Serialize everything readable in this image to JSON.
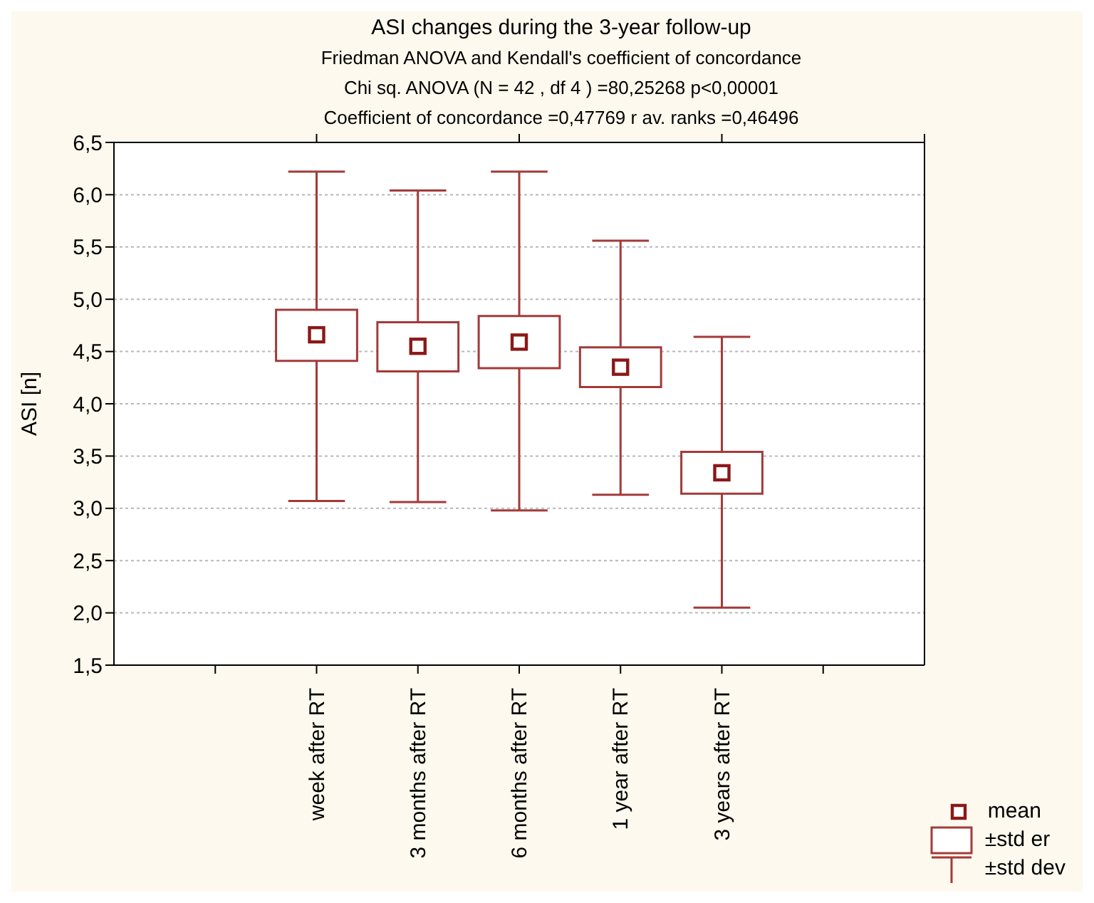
{
  "chart_data": {
    "type": "box",
    "title": "ASI changes during the 3-year follow-up",
    "subtitle": "Friedman ANOVA and Kendall's coefficient of concordance\nChi sq. ANOVA (N = 42 , df 4 ) =80,25268 p<0,00001\nCoefficient of concordance =0,47769 r av. ranks =0,46496",
    "ylabel": "ASI [n]",
    "categories": [
      null,
      "week after RT",
      "3 months after RT",
      "6 months after RT",
      "1 year after RT",
      "3 years after RT",
      null
    ],
    "color": "#a33a3a",
    "boxes": [
      null,
      {
        "low": 3.07,
        "q1": 4.41,
        "q3": 4.9,
        "high": 6.22,
        "mean": 4.66
      },
      {
        "low": 3.06,
        "q1": 4.31,
        "q3": 4.78,
        "high": 6.04,
        "mean": 4.55
      },
      {
        "low": 2.98,
        "q1": 4.34,
        "q3": 4.84,
        "high": 6.22,
        "mean": 4.59
      },
      {
        "low": 3.13,
        "q1": 4.16,
        "q3": 4.54,
        "high": 5.56,
        "mean": 4.35
      },
      {
        "low": 2.05,
        "q1": 3.14,
        "q3": 3.54,
        "high": 4.64,
        "mean": 3.34
      },
      null
    ],
    "ylim": [
      1.5,
      6.5
    ],
    "yticks": [
      {
        "value": 1.5,
        "label": "1,5"
      },
      {
        "value": 2,
        "label": "2,0"
      },
      {
        "value": 2.5,
        "label": "2,5"
      },
      {
        "value": 3,
        "label": "3,0"
      },
      {
        "value": 3.5,
        "label": "3,5"
      },
      {
        "value": 4,
        "label": "4,0"
      },
      {
        "value": 4.5,
        "label": "4,5"
      },
      {
        "value": 5,
        "label": "5,0"
      },
      {
        "value": 5.5,
        "label": "5,5"
      },
      {
        "value": 6,
        "label": "6,0"
      },
      {
        "value": 6.5,
        "label": "6,5"
      }
    ],
    "grid": "y",
    "marker": "square",
    "annotations": [
      "mean",
      "±std er",
      "±std dev"
    ]
  }
}
